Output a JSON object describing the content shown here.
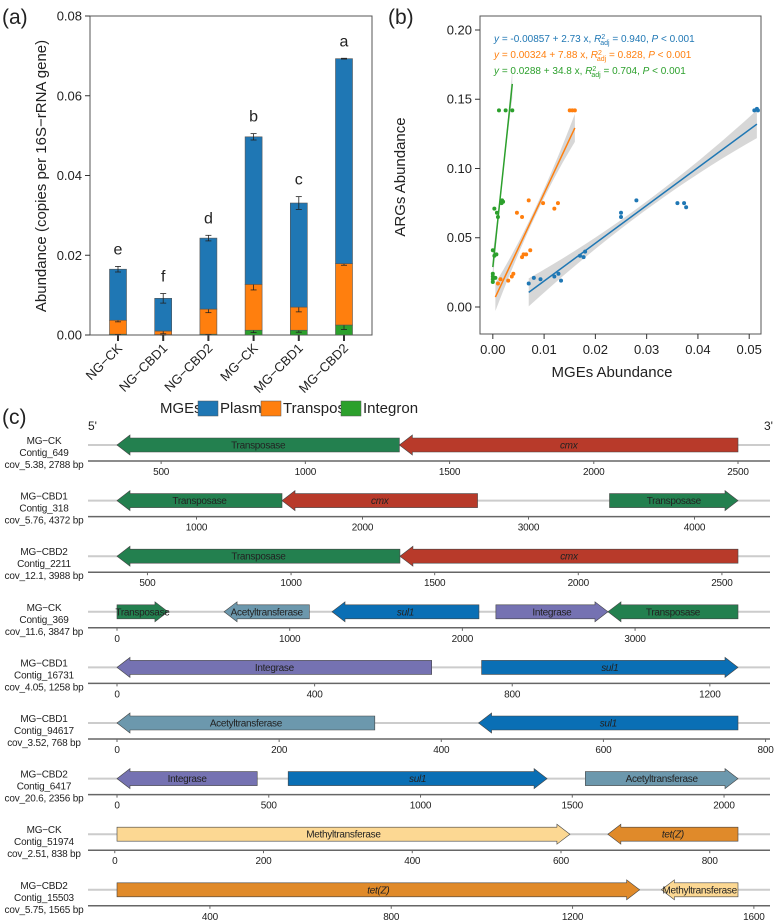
{
  "colors": {
    "plasmid": "#1f77b4",
    "transposon": "#ff7f0e",
    "integron": "#2ca02c",
    "band": "#bdbdbd",
    "backbone": "#cccccc",
    "axis": "#666666"
  },
  "legend": {
    "title": "MGEs",
    "items": [
      {
        "label": "Plasmid",
        "key": "plasmid"
      },
      {
        "label": "Transposon",
        "key": "transposon"
      },
      {
        "label": "Integron",
        "key": "integron"
      }
    ]
  },
  "chart_data": [
    {
      "panel": "(a)",
      "type": "bar",
      "stacked": true,
      "ylabel": "Abundance (copies per 16S−rRNA gene)",
      "ylim": [
        0,
        0.08
      ],
      "yticks": [
        "0.00",
        "0.02",
        "0.04",
        "0.06",
        "0.08"
      ],
      "categories": [
        "NG−CK",
        "NG−CBD1",
        "NG−CBD2",
        "MG−CK",
        "MG−CBD1",
        "MG−CBD2"
      ],
      "series": [
        {
          "name": "Integron",
          "key": "integron",
          "values": [
            0.0002,
            0.0001,
            0.0002,
            0.0012,
            0.0012,
            0.0025
          ],
          "errors": [
            0.0001,
            0.0001,
            0.0001,
            0.0006,
            0.0005,
            0.0011
          ]
        },
        {
          "name": "Transposon",
          "key": "transposon",
          "values": [
            0.0035,
            0.0009,
            0.0063,
            0.0115,
            0.0058,
            0.0154
          ],
          "errors": [
            0.0004,
            0.0007,
            0.0009,
            0.0014,
            0.0012,
            0.0004
          ]
        },
        {
          "name": "Plasmid",
          "key": "plasmid",
          "values": [
            0.0128,
            0.0082,
            0.0178,
            0.037,
            0.0261,
            0.0514
          ],
          "errors": [
            0.0007,
            0.0012,
            0.0007,
            0.0008,
            0.0016,
            0.0001
          ]
        }
      ],
      "significance_letters": [
        "e",
        "f",
        "d",
        "b",
        "c",
        "a"
      ]
    },
    {
      "panel": "(b)",
      "type": "scatter",
      "xlabel": "MGEs Abundance",
      "ylabel": "ARGs Abundance",
      "xlim": [
        -0.0025,
        0.0523
      ],
      "ylim": [
        -0.0195,
        0.2101
      ],
      "xticks": [
        "0.00",
        "0.01",
        "0.02",
        "0.03",
        "0.04",
        "0.05"
      ],
      "yticks": [
        "0.00",
        "0.05",
        "0.10",
        "0.15",
        "0.20"
      ],
      "series": [
        {
          "key": "plasmid",
          "fit": {
            "intercept": -0.00857,
            "slope": 2.73,
            "xrange": [
              0.007,
              0.0515
            ]
          },
          "equation": {
            "lhs": "y = ",
            "rhs": "-0.00857 + 2.73 x, ",
            "r": "R",
            "sup": "2",
            "sub": "adj",
            "r2": " = 0.940, ",
            "p": "P",
            "pval": " < 0.001"
          },
          "points": [
            [
              0.007,
              0.017
            ],
            [
              0.008,
              0.021
            ],
            [
              0.0093,
              0.02
            ],
            [
              0.012,
              0.022
            ],
            [
              0.0128,
              0.024
            ],
            [
              0.0133,
              0.019
            ],
            [
              0.017,
              0.037
            ],
            [
              0.0177,
              0.036
            ],
            [
              0.018,
              0.04
            ],
            [
              0.025,
              0.065
            ],
            [
              0.025,
              0.068
            ],
            [
              0.028,
              0.077
            ],
            [
              0.036,
              0.075
            ],
            [
              0.0373,
              0.075
            ],
            [
              0.0377,
              0.072
            ],
            [
              0.051,
              0.142
            ],
            [
              0.0515,
              0.143
            ],
            [
              0.0517,
              0.142
            ]
          ]
        },
        {
          "key": "transposon",
          "fit": {
            "intercept": 0.00324,
            "slope": 7.88,
            "xrange": [
              0.0005,
              0.016
            ]
          },
          "equation": {
            "lhs": "y = ",
            "rhs": "0.00324 + 7.88 x, ",
            "r": "R",
            "sup": "2",
            "sub": "adj",
            "r2": " = 0.828, ",
            "p": "P",
            "pval": " < 0.001"
          },
          "points": [
            [
              0.001,
              0.017
            ],
            [
              0.0015,
              0.02
            ],
            [
              0.003,
              0.019
            ],
            [
              0.0037,
              0.022
            ],
            [
              0.004,
              0.024
            ],
            [
              0.0047,
              0.068
            ],
            [
              0.0057,
              0.065
            ],
            [
              0.0057,
              0.036
            ],
            [
              0.006,
              0.038
            ],
            [
              0.0065,
              0.038
            ],
            [
              0.007,
              0.077
            ],
            [
              0.0073,
              0.041
            ],
            [
              0.0098,
              0.075
            ],
            [
              0.012,
              0.071
            ],
            [
              0.0127,
              0.075
            ],
            [
              0.015,
              0.142
            ],
            [
              0.0155,
              0.142
            ],
            [
              0.016,
              0.142
            ]
          ]
        },
        {
          "key": "integron",
          "fit": {
            "intercept": 0.0288,
            "slope": 34.8,
            "xrange": [
              0,
              0.0038
            ]
          },
          "equation": {
            "lhs": "y = ",
            "rhs": "0.0288 + 34.8 x, ",
            "r": "R",
            "sup": "2",
            "sub": "adj",
            "r2": " = 0.704, ",
            "p": "P",
            "pval": " < 0.001"
          },
          "points": [
            [
              0,
              0.018
            ],
            [
              0,
              0.02
            ],
            [
              0,
              0.022
            ],
            [
              0,
              0.024
            ],
            [
              0.0005,
              0.021
            ],
            [
              0,
              0.041
            ],
            [
              0.0003,
              0.037
            ],
            [
              0.0007,
              0.038
            ],
            [
              0.0003,
              0.071
            ],
            [
              0.0008,
              0.068
            ],
            [
              0.001,
              0.065
            ],
            [
              0.0017,
              0.075
            ],
            [
              0.0018,
              0.077
            ],
            [
              0.002,
              0.076
            ],
            [
              0.0012,
              0.142
            ],
            [
              0.0025,
              0.142
            ],
            [
              0.0038,
              0.142
            ]
          ]
        }
      ]
    },
    {
      "panel": "(c)",
      "type": "gene-map",
      "end_labels": {
        "left": "5'",
        "right": "3'"
      },
      "gene_colors": {
        "Transposase": "#23804f",
        "cmx": "#b83a2a",
        "sul1": "#0a6fb5",
        "Integrase": "#7572b2",
        "Acetyltransferase": "#6c98ad",
        "Methyltransferase": "#fcd893",
        "tet(Z)": "#e08a2a"
      },
      "italic_genes": [
        "cmx",
        "sul1",
        "tet(Z)"
      ],
      "tracks": [
        {
          "sample": "MG−CK",
          "contig": "Contig_649",
          "info": "cov_5.38, 2788 bp",
          "xlim": [
            347,
            2500
          ],
          "ticks": [
            500,
            1000,
            1500,
            2000,
            2500
          ],
          "genes": [
            {
              "name": "Transposase",
              "start": 347,
              "end": 1326,
              "strand": "-"
            },
            {
              "name": "cmx",
              "start": 1326,
              "end": 2500,
              "strand": "-"
            }
          ]
        },
        {
          "sample": "MG−CBD1",
          "contig": "Contig_318",
          "info": "cov_5.76, 4372 bp",
          "xlim": [
            521,
            4262
          ],
          "ticks": [
            1000,
            2000,
            3000,
            4000
          ],
          "genes": [
            {
              "name": "Transposase",
              "start": 521,
              "end": 1515,
              "strand": "-"
            },
            {
              "name": "cmx",
              "start": 1515,
              "end": 2693,
              "strand": "-"
            },
            {
              "name": "Transposase",
              "start": 3488,
              "end": 4262,
              "strand": "+"
            }
          ]
        },
        {
          "sample": "MG−CBD2",
          "contig": "Contig_2211",
          "info": "cov_12.1, 3988 bp",
          "xlim": [
            394,
            2556
          ],
          "ticks": [
            500,
            1000,
            1500,
            2000,
            2500
          ],
          "genes": [
            {
              "name": "Transposase",
              "start": 394,
              "end": 1379,
              "strand": "-"
            },
            {
              "name": "cmx",
              "start": 1379,
              "end": 2556,
              "strand": "-"
            }
          ]
        },
        {
          "sample": "MG−CK",
          "contig": "Contig_369",
          "info": "cov_11.6, 3847 bp",
          "xlim": [
            0,
            3596
          ],
          "ticks": [
            0,
            1000,
            2000,
            3000
          ],
          "genes": [
            {
              "name": "Transposase",
              "start": 0,
              "end": 295,
              "strand": "+"
            },
            {
              "name": "Acetyltransferase",
              "start": 620,
              "end": 1114,
              "strand": "-"
            },
            {
              "name": "sul1",
              "start": 1245,
              "end": 2096,
              "strand": "-"
            },
            {
              "name": "Integrase",
              "start": 2194,
              "end": 2843,
              "strand": "+"
            },
            {
              "name": "Transposase",
              "start": 2843,
              "end": 3596,
              "strand": "-"
            }
          ]
        },
        {
          "sample": "MG−CBD1",
          "contig": "Contig_16731",
          "info": "cov_4.05, 1258 bp",
          "xlim": [
            0,
            1257
          ],
          "ticks": [
            0,
            400,
            800,
            1200
          ],
          "genes": [
            {
              "name": "Integrase",
              "start": 0,
              "end": 637,
              "strand": "-"
            },
            {
              "name": "sul1",
              "start": 738,
              "end": 1257,
              "strand": "+"
            }
          ]
        },
        {
          "sample": "MG−CBD1",
          "contig": "Contig_94617",
          "info": "cov_3.52, 768 bp",
          "xlim": [
            0,
            766
          ],
          "ticks": [
            0,
            200,
            400,
            600,
            800
          ],
          "genes": [
            {
              "name": "Acetyltransferase",
              "start": 0,
              "end": 318,
              "strand": "-"
            },
            {
              "name": "sul1",
              "start": 446,
              "end": 766,
              "strand": "-"
            }
          ]
        },
        {
          "sample": "MG−CBD2",
          "contig": "Contig_6417",
          "info": "cov_20.6, 2356 bp",
          "xlim": [
            0,
            2046
          ],
          "ticks": [
            0,
            500,
            1000,
            1500,
            2000
          ],
          "genes": [
            {
              "name": "Integrase",
              "start": 0,
              "end": 462,
              "strand": "-"
            },
            {
              "name": "sul1",
              "start": 564,
              "end": 1417,
              "strand": "+"
            },
            {
              "name": "Acetyltransferase",
              "start": 1543,
              "end": 2046,
              "strand": "+"
            }
          ]
        },
        {
          "sample": "MG−CK",
          "contig": "Contig_51974",
          "info": "cov_2.51, 838 bp",
          "xlim": [
            3,
            838
          ],
          "ticks": [
            0,
            200,
            400,
            600,
            800
          ],
          "genes": [
            {
              "name": "Methyltransferase",
              "start": 3,
              "end": 612,
              "strand": "+"
            },
            {
              "name": "tet(Z)",
              "start": 663,
              "end": 838,
              "strand": "-"
            }
          ]
        },
        {
          "sample": "MG−CBD2",
          "contig": "Contig_15503",
          "info": "cov_5.75, 1565 bp",
          "xlim": [
            195,
            1565
          ],
          "ticks": [
            400,
            800,
            1200,
            1600
          ],
          "genes": [
            {
              "name": "tet(Z)",
              "start": 195,
              "end": 1348,
              "strand": "+"
            },
            {
              "name": "Methyltransferase",
              "start": 1396,
              "end": 1565,
              "strand": "-"
            }
          ]
        }
      ]
    }
  ]
}
